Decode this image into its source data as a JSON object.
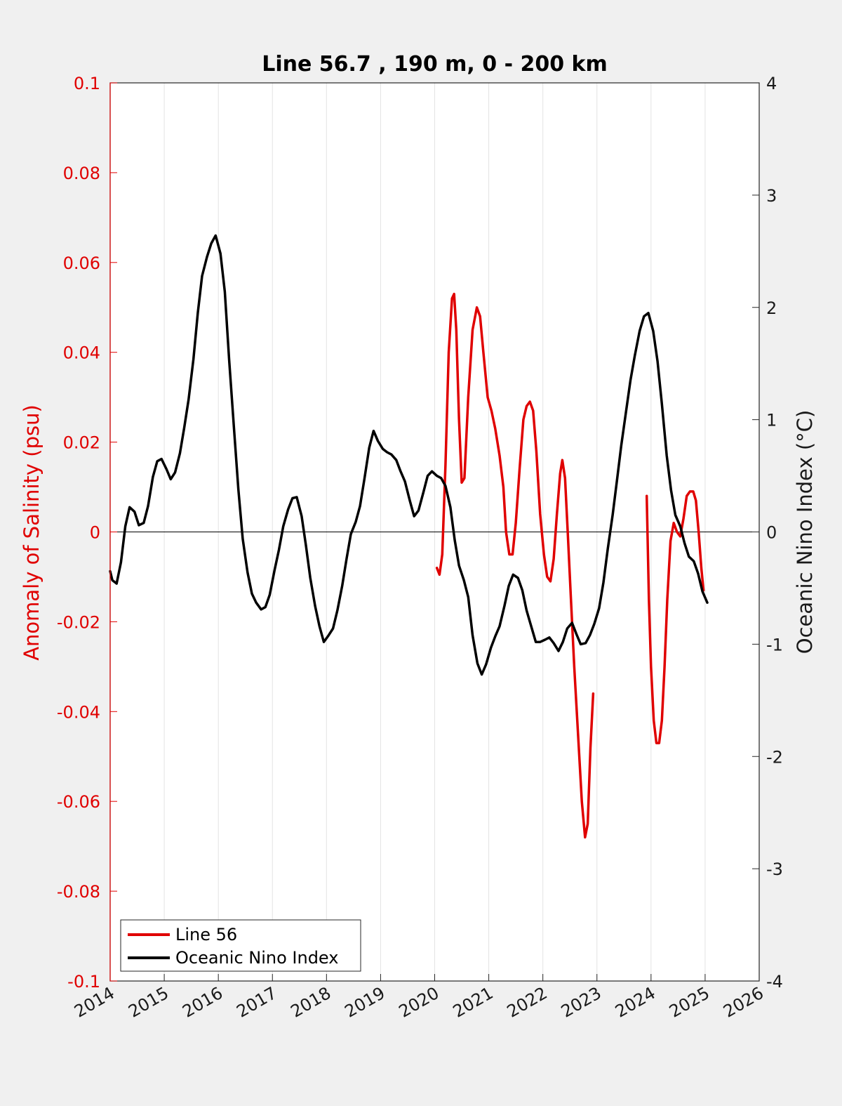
{
  "chart_data": {
    "type": "line",
    "title": "Line 56.7 , 190 m, 0 - 200 km",
    "xlabel": "",
    "xlim": [
      2014,
      2026
    ],
    "xticks": [
      "2014",
      "2015",
      "2016",
      "2017",
      "2018",
      "2019",
      "2020",
      "2021",
      "2022",
      "2023",
      "2024",
      "2025",
      "2026"
    ],
    "y_left": {
      "label": "Anomaly of Salinity (psu)",
      "lim": [
        -0.1,
        0.1
      ],
      "ticks": [
        "0.1",
        "0.08",
        "0.06",
        "0.04",
        "0.02",
        "0",
        "-0.02",
        "-0.04",
        "-0.06",
        "-0.08",
        "-0.1"
      ],
      "tick_values": [
        0.1,
        0.08,
        0.06,
        0.04,
        0.02,
        0,
        -0.02,
        -0.04,
        -0.06,
        -0.08,
        -0.1
      ],
      "color": "#e00000"
    },
    "y_right": {
      "label": "Oceanic Nino Index (°C)",
      "lim": [
        -4,
        4
      ],
      "ticks": [
        "4",
        "3",
        "2",
        "1",
        "0",
        "-1",
        "-2",
        "-3",
        "-4"
      ],
      "tick_values": [
        4,
        3,
        2,
        1,
        0,
        -1,
        -2,
        -3,
        -4
      ],
      "color": "#000000"
    },
    "grid": "vertical",
    "legend_position": "bottom-left",
    "series": [
      {
        "name": "Line 56",
        "axis": "left",
        "color": "#e00000",
        "segments": [
          [
            [
              2020.04,
              -0.008
            ],
            [
              2020.09,
              -0.0095
            ],
            [
              2020.14,
              -0.005
            ],
            [
              2020.2,
              0.015
            ],
            [
              2020.26,
              0.04
            ],
            [
              2020.32,
              0.052
            ],
            [
              2020.36,
              0.053
            ],
            [
              2020.4,
              0.045
            ],
            [
              2020.45,
              0.025
            ],
            [
              2020.5,
              0.011
            ],
            [
              2020.55,
              0.012
            ],
            [
              2020.62,
              0.03
            ],
            [
              2020.7,
              0.045
            ],
            [
              2020.78,
              0.05
            ],
            [
              2020.84,
              0.048
            ],
            [
              2020.9,
              0.04
            ],
            [
              2020.98,
              0.03
            ],
            [
              2021.05,
              0.027
            ],
            [
              2021.12,
              0.023
            ],
            [
              2021.2,
              0.017
            ],
            [
              2021.27,
              0.01
            ],
            [
              2021.32,
              0.0
            ],
            [
              2021.38,
              -0.005
            ],
            [
              2021.44,
              -0.005
            ],
            [
              2021.5,
              0.002
            ],
            [
              2021.57,
              0.014
            ],
            [
              2021.64,
              0.025
            ],
            [
              2021.7,
              0.028
            ],
            [
              2021.76,
              0.029
            ],
            [
              2021.82,
              0.027
            ],
            [
              2021.88,
              0.018
            ],
            [
              2021.95,
              0.004
            ],
            [
              2022.02,
              -0.005
            ],
            [
              2022.08,
              -0.01
            ],
            [
              2022.14,
              -0.011
            ],
            [
              2022.2,
              -0.006
            ],
            [
              2022.26,
              0.004
            ],
            [
              2022.32,
              0.013
            ],
            [
              2022.36,
              0.016
            ],
            [
              2022.41,
              0.012
            ],
            [
              2022.46,
              0.0
            ],
            [
              2022.52,
              -0.015
            ],
            [
              2022.58,
              -0.03
            ],
            [
              2022.65,
              -0.045
            ],
            [
              2022.72,
              -0.06
            ],
            [
              2022.78,
              -0.068
            ],
            [
              2022.83,
              -0.065
            ],
            [
              2022.88,
              -0.048
            ],
            [
              2022.93,
              -0.036
            ]
          ],
          [
            [
              2023.92,
              0.008
            ],
            [
              2023.96,
              -0.015
            ],
            [
              2024.0,
              -0.03
            ],
            [
              2024.05,
              -0.042
            ],
            [
              2024.1,
              -0.047
            ],
            [
              2024.15,
              -0.047
            ],
            [
              2024.2,
              -0.042
            ],
            [
              2024.25,
              -0.03
            ],
            [
              2024.3,
              -0.015
            ],
            [
              2024.36,
              -0.002
            ],
            [
              2024.42,
              0.002
            ],
            [
              2024.48,
              0.0
            ],
            [
              2024.54,
              -0.001
            ],
            [
              2024.6,
              0.003
            ],
            [
              2024.66,
              0.008
            ],
            [
              2024.72,
              0.009
            ],
            [
              2024.78,
              0.009
            ],
            [
              2024.83,
              0.007
            ],
            [
              2024.88,
              0.0
            ],
            [
              2024.93,
              -0.008
            ],
            [
              2024.97,
              -0.013
            ]
          ]
        ]
      },
      {
        "name": "Oceanic Nino Index",
        "axis": "right",
        "color": "#000000",
        "segments": [
          [
            [
              2014.0,
              -0.35
            ],
            [
              2014.04,
              -0.43
            ],
            [
              2014.12,
              -0.46
            ],
            [
              2014.2,
              -0.27
            ],
            [
              2014.28,
              0.05
            ],
            [
              2014.36,
              0.22
            ],
            [
              2014.45,
              0.18
            ],
            [
              2014.53,
              0.06
            ],
            [
              2014.62,
              0.08
            ],
            [
              2014.7,
              0.23
            ],
            [
              2014.79,
              0.49
            ],
            [
              2014.87,
              0.63
            ],
            [
              2014.95,
              0.65
            ],
            [
              2015.04,
              0.56
            ],
            [
              2015.12,
              0.47
            ],
            [
              2015.2,
              0.53
            ],
            [
              2015.29,
              0.7
            ],
            [
              2015.37,
              0.93
            ],
            [
              2015.45,
              1.18
            ],
            [
              2015.54,
              1.54
            ],
            [
              2015.62,
              1.95
            ],
            [
              2015.7,
              2.28
            ],
            [
              2015.79,
              2.45
            ],
            [
              2015.87,
              2.57
            ],
            [
              2015.95,
              2.64
            ],
            [
              2016.04,
              2.48
            ],
            [
              2016.12,
              2.14
            ],
            [
              2016.2,
              1.53
            ],
            [
              2016.29,
              0.92
            ],
            [
              2016.37,
              0.38
            ],
            [
              2016.45,
              -0.06
            ],
            [
              2016.54,
              -0.36
            ],
            [
              2016.62,
              -0.55
            ],
            [
              2016.7,
              -0.63
            ],
            [
              2016.79,
              -0.69
            ],
            [
              2016.87,
              -0.67
            ],
            [
              2016.95,
              -0.56
            ],
            [
              2017.04,
              -0.34
            ],
            [
              2017.12,
              -0.16
            ],
            [
              2017.2,
              0.05
            ],
            [
              2017.29,
              0.2
            ],
            [
              2017.37,
              0.3
            ],
            [
              2017.45,
              0.31
            ],
            [
              2017.54,
              0.14
            ],
            [
              2017.62,
              -0.12
            ],
            [
              2017.7,
              -0.41
            ],
            [
              2017.79,
              -0.66
            ],
            [
              2017.87,
              -0.84
            ],
            [
              2017.95,
              -0.98
            ],
            [
              2018.04,
              -0.92
            ],
            [
              2018.12,
              -0.86
            ],
            [
              2018.2,
              -0.7
            ],
            [
              2018.29,
              -0.48
            ],
            [
              2018.37,
              -0.24
            ],
            [
              2018.45,
              -0.02
            ],
            [
              2018.54,
              0.09
            ],
            [
              2018.62,
              0.23
            ],
            [
              2018.7,
              0.47
            ],
            [
              2018.79,
              0.75
            ],
            [
              2018.87,
              0.9
            ],
            [
              2018.95,
              0.81
            ],
            [
              2019.04,
              0.74
            ],
            [
              2019.12,
              0.71
            ],
            [
              2019.2,
              0.69
            ],
            [
              2019.29,
              0.64
            ],
            [
              2019.37,
              0.54
            ],
            [
              2019.45,
              0.45
            ],
            [
              2019.54,
              0.28
            ],
            [
              2019.62,
              0.14
            ],
            [
              2019.7,
              0.19
            ],
            [
              2019.79,
              0.35
            ],
            [
              2019.87,
              0.5
            ],
            [
              2019.95,
              0.54
            ],
            [
              2020.04,
              0.5
            ],
            [
              2020.12,
              0.48
            ],
            [
              2020.2,
              0.41
            ],
            [
              2020.29,
              0.22
            ],
            [
              2020.37,
              -0.07
            ],
            [
              2020.45,
              -0.3
            ],
            [
              2020.54,
              -0.43
            ],
            [
              2020.62,
              -0.58
            ],
            [
              2020.7,
              -0.92
            ],
            [
              2020.79,
              -1.17
            ],
            [
              2020.87,
              -1.27
            ],
            [
              2020.95,
              -1.18
            ],
            [
              2021.04,
              -1.03
            ],
            [
              2021.12,
              -0.93
            ],
            [
              2021.2,
              -0.84
            ],
            [
              2021.29,
              -0.66
            ],
            [
              2021.37,
              -0.48
            ],
            [
              2021.45,
              -0.38
            ],
            [
              2021.54,
              -0.41
            ],
            [
              2021.62,
              -0.52
            ],
            [
              2021.7,
              -0.7
            ],
            [
              2021.79,
              -0.85
            ],
            [
              2021.87,
              -0.98
            ],
            [
              2021.95,
              -0.98
            ],
            [
              2022.04,
              -0.96
            ],
            [
              2022.12,
              -0.94
            ],
            [
              2022.2,
              -0.99
            ],
            [
              2022.29,
              -1.06
            ],
            [
              2022.37,
              -0.98
            ],
            [
              2022.45,
              -0.86
            ],
            [
              2022.54,
              -0.81
            ],
            [
              2022.62,
              -0.91
            ],
            [
              2022.7,
              -1.0
            ],
            [
              2022.79,
              -0.99
            ],
            [
              2022.87,
              -0.92
            ],
            [
              2022.95,
              -0.82
            ],
            [
              2023.04,
              -0.68
            ],
            [
              2023.12,
              -0.45
            ],
            [
              2023.2,
              -0.15
            ],
            [
              2023.29,
              0.15
            ],
            [
              2023.37,
              0.46
            ],
            [
              2023.45,
              0.77
            ],
            [
              2023.54,
              1.08
            ],
            [
              2023.62,
              1.35
            ],
            [
              2023.7,
              1.57
            ],
            [
              2023.79,
              1.79
            ],
            [
              2023.87,
              1.92
            ],
            [
              2023.95,
              1.95
            ],
            [
              2024.04,
              1.79
            ],
            [
              2024.12,
              1.52
            ],
            [
              2024.2,
              1.14
            ],
            [
              2024.29,
              0.68
            ],
            [
              2024.37,
              0.37
            ],
            [
              2024.45,
              0.15
            ],
            [
              2024.54,
              0.05
            ],
            [
              2024.62,
              -0.1
            ],
            [
              2024.7,
              -0.22
            ],
            [
              2024.79,
              -0.26
            ],
            [
              2024.87,
              -0.37
            ],
            [
              2024.95,
              -0.53
            ],
            [
              2025.04,
              -0.63
            ]
          ]
        ]
      }
    ]
  }
}
